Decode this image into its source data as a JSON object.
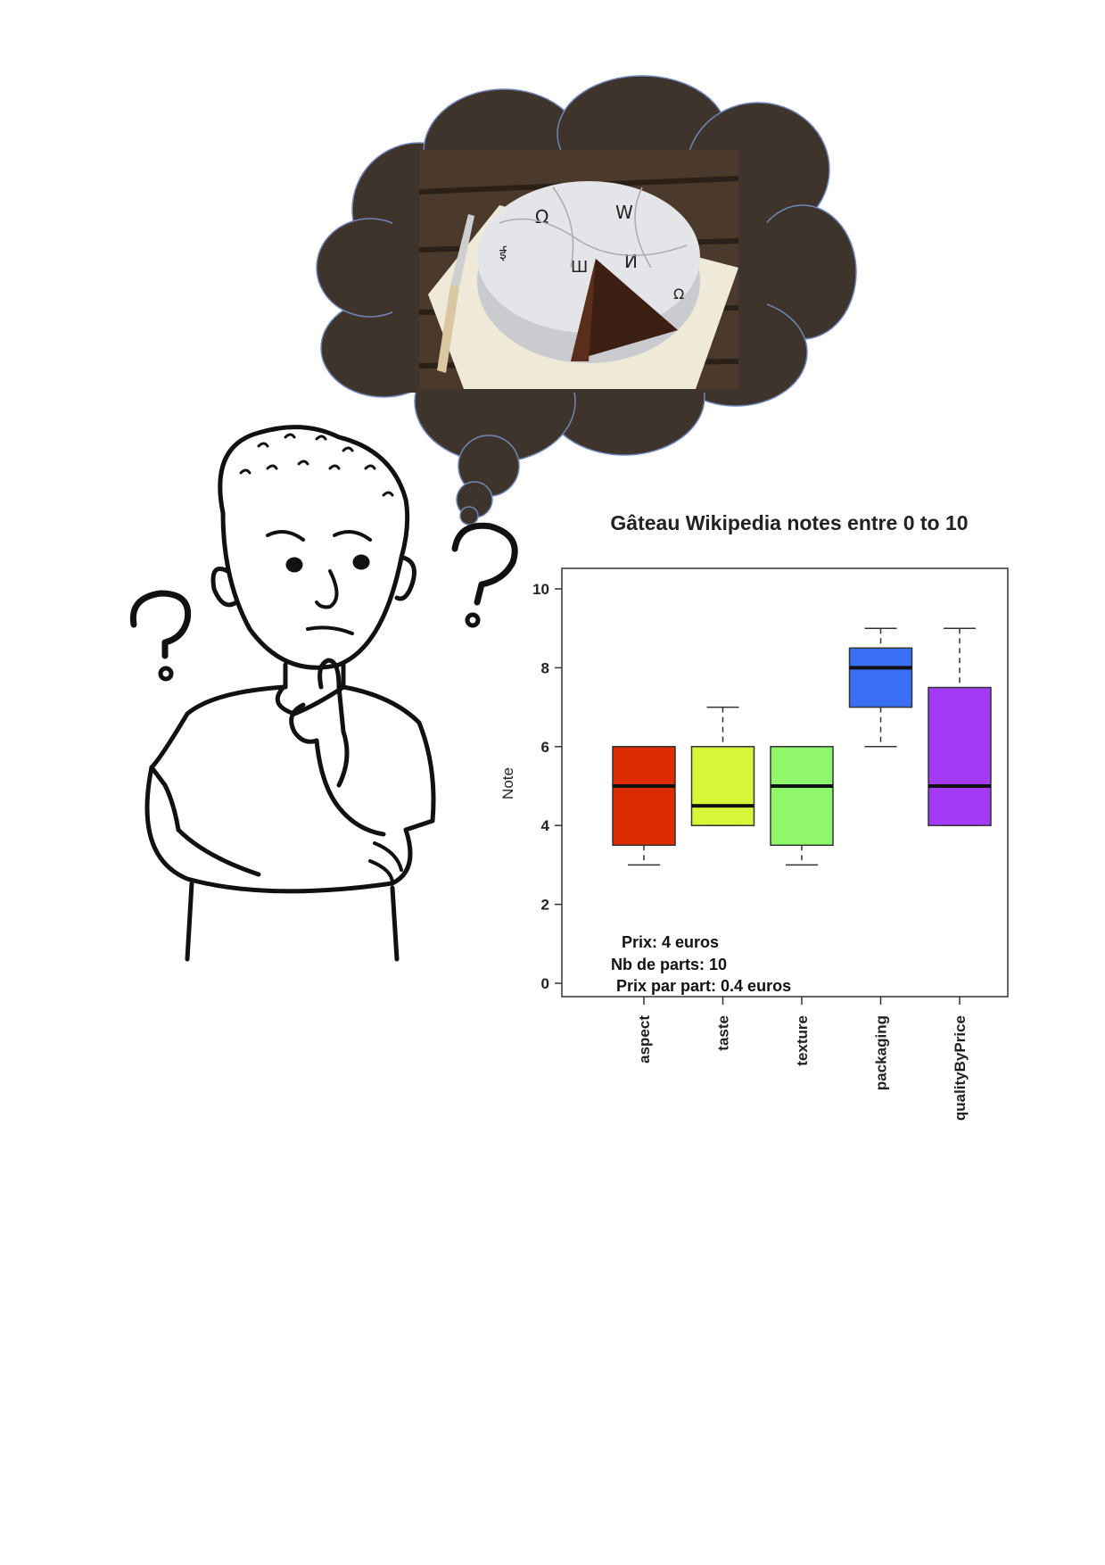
{
  "chart_data": {
    "type": "box",
    "title": "Gâteau Wikipedia notes entre 0 to 10",
    "xlabel": "",
    "ylabel": "Note",
    "ylim": [
      0,
      10
    ],
    "yticks": [
      0,
      2,
      4,
      6,
      8,
      10
    ],
    "grid": false,
    "categories": [
      "aspect",
      "taste",
      "texture",
      "packaging",
      "qualityByPrice"
    ],
    "boxes": [
      {
        "category": "aspect",
        "min": 3,
        "q1": 3.5,
        "median": 5,
        "q3": 6,
        "max": 6,
        "color": "#dd2b00"
      },
      {
        "category": "taste",
        "min": 4,
        "q1": 4,
        "median": 4.5,
        "q3": 6,
        "max": 7,
        "color": "#d9f53a"
      },
      {
        "category": "texture",
        "min": 3,
        "q1": 3.5,
        "median": 5,
        "q3": 6,
        "max": 6,
        "color": "#8ff86a"
      },
      {
        "category": "packaging",
        "min": 6,
        "q1": 7,
        "median": 8,
        "q3": 8.5,
        "max": 9,
        "color": "#3a6ef5"
      },
      {
        "category": "qualityByPrice",
        "min": 4,
        "q1": 4,
        "median": 5,
        "q3": 7.5,
        "max": 9,
        "color": "#a53af5"
      }
    ],
    "annotations": [
      "Prix: 4 euros",
      "Nb de parts: 10",
      "Prix par part: 0.4 euros"
    ]
  },
  "illustration": {
    "figure": "thinking-person",
    "thought_bubble_color": "#3e342c",
    "photo": "wikipedia-puzzle-globe-cake"
  }
}
